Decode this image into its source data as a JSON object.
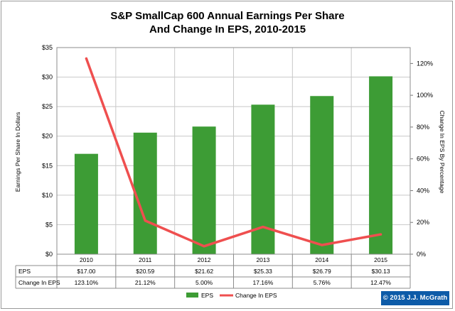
{
  "chart_data": {
    "type": "bar",
    "title_lines": [
      "S&P SmallCap 600 Annual Earnings Per Share",
      "And Change In EPS, 2010-2015"
    ],
    "categories": [
      "2010",
      "2011",
      "2012",
      "2013",
      "2014",
      "2015"
    ],
    "ylabel": "Earnings Per Share In Dollars",
    "y2label": "Change In EPS By Percentage",
    "ylim": [
      0,
      35
    ],
    "y2lim": [
      0,
      130
    ],
    "y_ticks": [
      0,
      5,
      10,
      15,
      20,
      25,
      30,
      35
    ],
    "y_tick_labels": [
      "$0",
      "$5",
      "$10",
      "$15",
      "$20",
      "$25",
      "$30",
      "$35"
    ],
    "y2_ticks": [
      0,
      20,
      40,
      60,
      80,
      100,
      120
    ],
    "y2_tick_labels": [
      "0%",
      "20%",
      "40%",
      "60%",
      "80%",
      "100%",
      "120%"
    ],
    "grid": true,
    "legend_position": "bottom",
    "series": [
      {
        "name": "EPS",
        "type": "bar",
        "axis": "left",
        "color": "#3d9c35",
        "values": [
          17.0,
          20.59,
          21.62,
          25.33,
          26.79,
          30.13
        ],
        "labels": [
          "$17.00",
          "$20.59",
          "$21.62",
          "$25.33",
          "$26.79",
          "$30.13"
        ]
      },
      {
        "name": "Change In EPS",
        "type": "line",
        "axis": "right",
        "color": "#ef4f4f",
        "values": [
          123.1,
          21.12,
          5.0,
          17.16,
          5.76,
          12.47
        ],
        "labels": [
          "123.10%",
          "21.12%",
          "5.00%",
          "17.16%",
          "5.76%",
          "12.47%"
        ]
      }
    ]
  },
  "copyright": "© 2015 J.J. McGrath"
}
